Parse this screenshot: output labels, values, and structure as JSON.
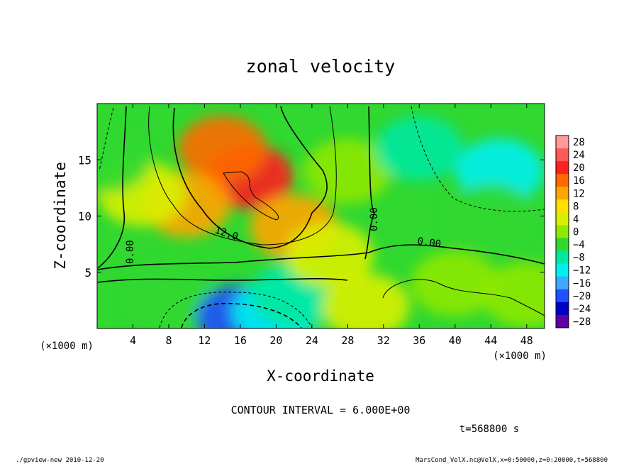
{
  "chart_data": {
    "type": "heatmap",
    "title": "zonal velocity",
    "xlabel": "X-coordinate",
    "ylabel": "Z-coordinate",
    "x_unit_note": "(×1000 m)",
    "z_unit_note": "(×1000 m)",
    "xlim": [
      0,
      50
    ],
    "zlim": [
      0,
      20
    ],
    "x_ticks": [
      4,
      8,
      12,
      16,
      20,
      24,
      28,
      32,
      36,
      40,
      44,
      48
    ],
    "z_ticks": [
      5,
      10,
      15
    ],
    "colorbar": {
      "labels": [
        28,
        24,
        20,
        16,
        12,
        8,
        4,
        0,
        -4,
        -8,
        -12,
        -16,
        -20,
        -24,
        -28
      ],
      "colors": [
        "#ff9a9a",
        "#ff5a5a",
        "#ff2020",
        "#ff6a00",
        "#ffa500",
        "#ffe000",
        "#d8f000",
        "#8ee800",
        "#30d830",
        "#00e8a0",
        "#00f0f0",
        "#40a8ff",
        "#2050ff",
        "#0000c8",
        "#6000a0"
      ]
    },
    "field_samples": [
      {
        "x": 17,
        "z": 13.5,
        "value": 21
      },
      {
        "x": 14,
        "z": 16,
        "value": 17
      },
      {
        "x": 10,
        "z": 11,
        "value": 11
      },
      {
        "x": 22,
        "z": 9,
        "value": 13
      },
      {
        "x": 5,
        "z": 12,
        "value": 3
      },
      {
        "x": 1,
        "z": 15,
        "value": -6
      },
      {
        "x": 28,
        "z": 14,
        "value": 1
      },
      {
        "x": 36,
        "z": 16,
        "value": -7
      },
      {
        "x": 45,
        "z": 14,
        "value": -11
      },
      {
        "x": 44,
        "z": 10,
        "value": -5
      },
      {
        "x": 40,
        "z": 4,
        "value": 1
      },
      {
        "x": 48,
        "z": 3,
        "value": -2
      },
      {
        "x": 8,
        "z": 3,
        "value": -3
      },
      {
        "x": 16,
        "z": 1,
        "value": -20
      },
      {
        "x": 20,
        "z": 1.5,
        "value": -14
      },
      {
        "x": 22,
        "z": 3,
        "value": -9
      },
      {
        "x": 30,
        "z": 2,
        "value": 3
      },
      {
        "x": 26,
        "z": 6.5,
        "value": 4
      }
    ],
    "contour_labels": [
      "12.0",
      "0.00",
      "0.00",
      "0.00"
    ],
    "contour_interval": "CONTOUR INTERVAL = 6.000E+00",
    "time_label": "t=568800 s"
  },
  "footer": {
    "left": "./gpview-new  2010-12-20",
    "right": "MarsCond_VelX.nc@VelX,x=0:50000,z=0:20000,t=568800"
  }
}
